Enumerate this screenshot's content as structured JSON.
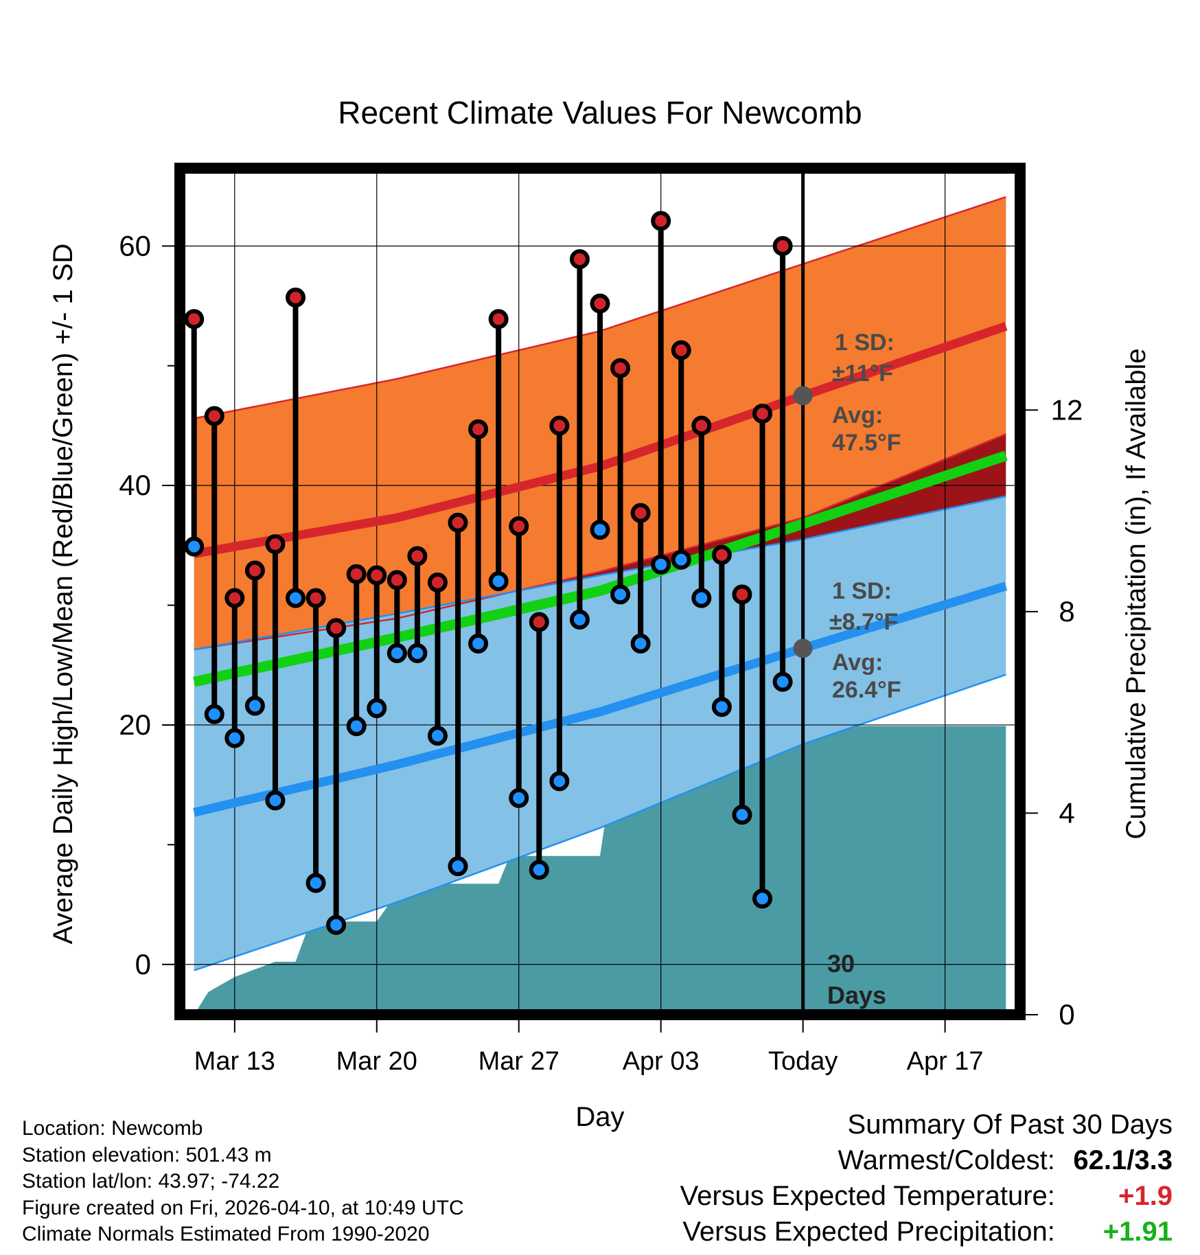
{
  "chart_data": {
    "type": "line",
    "title": "Recent Climate Values For Newcomb",
    "xlabel": "Day",
    "ylabel": "Average Daily High/Low/Mean (Red/Blue/Green) +/- 1 SD",
    "y2label": "Cumulative Precipitation (in), If Available",
    "ylim": [
      -4.2,
      66.5
    ],
    "y2lim": [
      0,
      16.8
    ],
    "xlim": [
      -0.7,
      40.7
    ],
    "yticks": [
      "0",
      "20",
      "40",
      "60"
    ],
    "ytick_values": [
      0,
      20,
      40,
      60
    ],
    "y2ticks": [
      "0",
      "4",
      "8",
      "12"
    ],
    "y2tick_values": [
      0,
      4,
      8,
      12
    ],
    "xticks": [
      "Mar 13",
      "Mar 20",
      "Mar 27",
      "Apr 03",
      "Today",
      "Apr 17"
    ],
    "xtick_values": [
      2,
      9,
      16,
      23,
      30,
      37
    ],
    "grid": true,
    "today_index": 30,
    "highs": [
      53.9,
      45.8,
      30.6,
      32.9,
      35.1,
      55.7,
      30.6,
      28.1,
      32.6,
      32.5,
      32.1,
      34.1,
      31.9,
      36.9,
      44.7,
      53.9,
      36.6,
      28.6,
      45,
      58.9,
      55.2,
      49.8,
      37.7,
      62.1,
      51.3,
      45,
      34.2,
      30.9,
      46,
      60
    ],
    "lows": [
      34.9,
      20.9,
      18.9,
      21.6,
      13.7,
      30.6,
      6.8,
      3.3,
      19.9,
      21.4,
      26,
      26,
      19.1,
      8.2,
      26.8,
      32,
      13.9,
      7.9,
      15.3,
      28.8,
      36.3,
      30.9,
      26.8,
      33.4,
      33.8,
      30.6,
      21.5,
      12.5,
      5.5,
      23.6
    ],
    "avg_high": {
      "x": [
        0,
        10,
        20,
        30,
        40
      ],
      "values": [
        34.3,
        37.3,
        41.6,
        47.5,
        53.3
      ]
    },
    "avg_high_upper": {
      "x": [
        0,
        10,
        20,
        30,
        40
      ],
      "values": [
        45.6,
        48.9,
        52.9,
        58.5,
        64.1
      ]
    },
    "avg_high_lower": {
      "x": [
        0,
        10,
        20,
        30,
        40
      ],
      "values": [
        26.3,
        28.9,
        32.8,
        37.3,
        44.3
      ]
    },
    "avg_low": {
      "x": [
        0,
        10,
        20,
        30,
        40
      ],
      "values": [
        12.7,
        16.7,
        21.1,
        26.4,
        31.6
      ]
    },
    "avg_low_upper": {
      "x": [
        0,
        10,
        20,
        30,
        40
      ],
      "values": [
        26.3,
        29.3,
        32.5,
        35.5,
        39.1
      ]
    },
    "avg_low_lower": {
      "x": [
        0,
        10,
        20,
        30,
        40
      ],
      "values": [
        -0.5,
        5.2,
        11.4,
        18.4,
        24.2
      ]
    },
    "avg_mean": {
      "x": [
        0,
        10,
        20,
        30,
        40
      ],
      "values": [
        23.6,
        27.3,
        31.2,
        36.8,
        42.5
      ]
    },
    "precip_cumulative": {
      "x": [
        0,
        0.7,
        2,
        3,
        4,
        5,
        5.5,
        6,
        7,
        8,
        9,
        9.7,
        10,
        11,
        12,
        13,
        14,
        15,
        15.5,
        16,
        17,
        18,
        19,
        20,
        20.5,
        21,
        22,
        23,
        24,
        25,
        25.5,
        26,
        27,
        28,
        29,
        30,
        40
      ],
      "values": [
        0,
        0.45,
        0.75,
        0.9,
        1.05,
        1.05,
        1.6,
        1.8,
        1.85,
        1.85,
        1.85,
        2.25,
        2.35,
        2.45,
        2.6,
        2.6,
        2.6,
        2.6,
        3.1,
        3.15,
        3.15,
        3.15,
        3.15,
        3.15,
        4.5,
        4.55,
        4.7,
        4.9,
        4.9,
        5.25,
        5.5,
        5.55,
        5.7,
        5.73,
        5.73,
        5.73,
        5.73
      ]
    },
    "annotations": {
      "high_sd": "1 SD:",
      "high_sd_value": "±11°F",
      "high_avg": "Avg:",
      "high_avg_value": "47.5°F",
      "low_sd": "1 SD:",
      "low_sd_value": "±8.7°F",
      "low_avg": "Avg:",
      "low_avg_value": "26.4°F",
      "days_count": "30",
      "days_word": "Days"
    }
  },
  "metadata": {
    "location": "Location: Newcomb",
    "elevation": "Station elevation: 501.43 m",
    "latlon": "Station lat/lon: 43.97; -74.22",
    "created": "Figure created on Fri, 2026-04-10, at 10:49 UTC",
    "normals": "Climate Normals Estimated From 1990-2020"
  },
  "summary": {
    "heading": "Summary Of Past 30 Days",
    "warmest_label": "Warmest/Coldest:",
    "warmest_value": "62.1/3.3",
    "temp_label": "Versus Expected Temperature:",
    "temp_value": "+1.9",
    "precip_label": "Versus Expected Precipitation:",
    "precip_value": "+1.91"
  },
  "colors": {
    "high_band": "#f47b30",
    "high_line": "#d7262b",
    "low_band": "#83c1e6",
    "low_line": "#2490ef",
    "mean_line": "#12d012",
    "precip": "#4a9ba4",
    "overlap": "#9c1418",
    "temp_positive": "#d7262b",
    "precip_positive": "#17b11a"
  }
}
